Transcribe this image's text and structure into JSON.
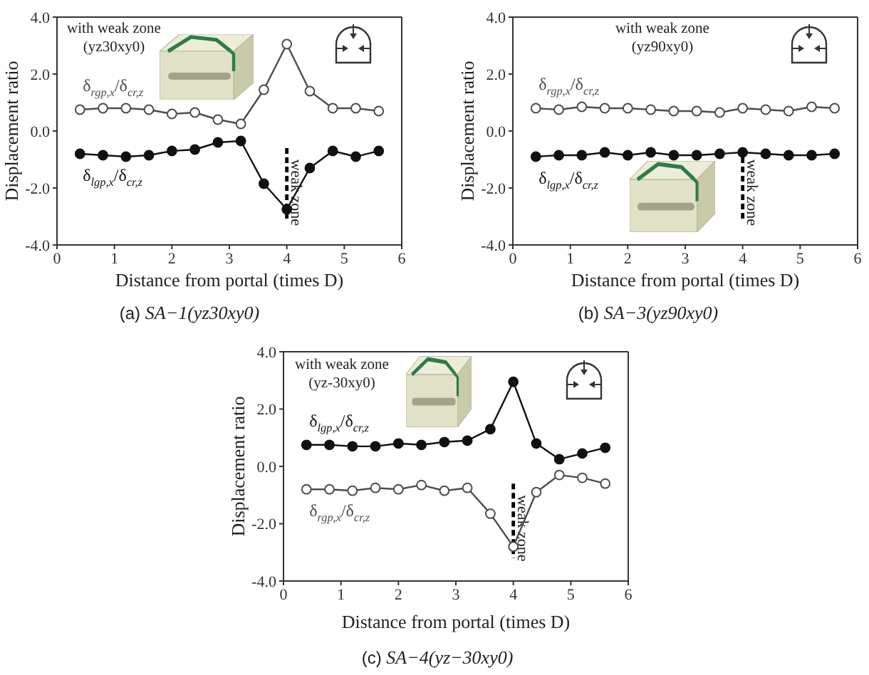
{
  "chart_data": [
    {
      "type": "line",
      "xlabel": "Distance from portal (times D)",
      "ylabel": "Displacement ratio",
      "x": [
        0.4,
        0.8,
        1.2,
        1.6,
        2.0,
        2.4,
        2.8,
        3.2,
        3.6,
        4.0,
        4.4,
        4.8,
        5.2,
        5.6
      ],
      "marker": "circle",
      "series": [
        {
          "name": "δ$_{rgp,x}$/δ$_{cr,z}$",
          "color": "#4d4d4d",
          "marker": "open circle",
          "values": [
            0.75,
            0.8,
            0.8,
            0.75,
            0.6,
            0.65,
            0.4,
            0.25,
            1.45,
            3.05,
            1.4,
            0.8,
            0.8,
            0.7
          ]
        },
        {
          "name": "δ$_{lgp,x}$/δ$_{cr,z}$",
          "color": "#111111",
          "values": [
            -0.8,
            -0.85,
            -0.9,
            -0.85,
            -0.7,
            -0.65,
            -0.4,
            -0.35,
            -1.85,
            -2.75,
            -1.3,
            -0.7,
            -0.9,
            -0.7
          ]
        }
      ],
      "xlim": [
        0,
        6
      ],
      "xticks": [
        0,
        1,
        2,
        3,
        4,
        5,
        6
      ],
      "ylim": [
        -4,
        4
      ],
      "yticks": [
        {
          "value": -4,
          "label": "-4.0"
        },
        {
          "value": -2,
          "label": "-2.0"
        },
        {
          "value": 0,
          "label": "0.0"
        },
        {
          "value": 2,
          "label": "2.0"
        },
        {
          "value": 4,
          "label": "4.0"
        }
      ],
      "ref_lines": [
        {
          "axis": "x",
          "value": 4,
          "label": "weak zone",
          "line_style": "dashed",
          "color": "#000000"
        }
      ],
      "annotations": [
        "with weak zone\n(yz30xy0)",
        "(a) SA−1(yz30xy0)"
      ]
    },
    {
      "type": "line",
      "xlabel": "Distance from portal (times D)",
      "ylabel": "Displacement ratio",
      "x": [
        0.4,
        0.8,
        1.2,
        1.6,
        2.0,
        2.4,
        2.8,
        3.2,
        3.6,
        4.0,
        4.4,
        4.8,
        5.2,
        5.6
      ],
      "marker": "circle",
      "series": [
        {
          "name": "δ$_{rgp,x}$/δ$_{cr,z}$",
          "color": "#4d4d4d",
          "marker": "open circle",
          "values": [
            0.8,
            0.75,
            0.85,
            0.8,
            0.8,
            0.75,
            0.7,
            0.7,
            0.65,
            0.8,
            0.75,
            0.7,
            0.85,
            0.8
          ]
        },
        {
          "name": "δ$_{lgp,x}$/δ$_{cr,z}$",
          "color": "#111111",
          "values": [
            -0.9,
            -0.85,
            -0.85,
            -0.75,
            -0.85,
            -0.75,
            -0.85,
            -0.85,
            -0.8,
            -0.75,
            -0.8,
            -0.85,
            -0.85,
            -0.8
          ]
        }
      ],
      "xlim": [
        0,
        6
      ],
      "xticks": [
        0,
        1,
        2,
        3,
        4,
        5,
        6
      ],
      "ylim": [
        -4,
        4
      ],
      "yticks": [
        {
          "value": -4,
          "label": "-4.0"
        },
        {
          "value": -2,
          "label": "-2.0"
        },
        {
          "value": 0,
          "label": "0.0"
        },
        {
          "value": 2,
          "label": "2.0"
        },
        {
          "value": 4,
          "label": "4.0"
        }
      ],
      "ref_lines": [
        {
          "axis": "x",
          "value": 4,
          "label": "weak zone",
          "line_style": "dashed",
          "color": "#000000"
        }
      ],
      "annotations": [
        "with weak zone\n(yz90xy0)",
        "(b) SA−3(yz90xy0)"
      ]
    },
    {
      "type": "line",
      "xlabel": "Distance from portal (times D)",
      "ylabel": "Displacement ratio",
      "x": [
        0.4,
        0.8,
        1.2,
        1.6,
        2.0,
        2.4,
        2.8,
        3.2,
        3.6,
        4.0,
        4.4,
        4.8,
        5.2,
        5.6
      ],
      "marker": "circle",
      "series": [
        {
          "name": "δ$_{lgp,x}$/δ$_{cr,z}$",
          "color": "#111111",
          "values": [
            0.75,
            0.75,
            0.7,
            0.7,
            0.8,
            0.75,
            0.85,
            0.9,
            1.3,
            2.95,
            0.8,
            0.25,
            0.45,
            0.65
          ]
        },
        {
          "name": "δ$_{rgp,x}$/δ$_{cr,z}$",
          "color": "#4d4d4d",
          "marker": "open circle",
          "values": [
            -0.8,
            -0.8,
            -0.85,
            -0.75,
            -0.8,
            -0.65,
            -0.85,
            -0.75,
            -1.65,
            -2.8,
            -0.9,
            -0.3,
            -0.4,
            -0.6
          ]
        }
      ],
      "xlim": [
        0,
        6
      ],
      "xticks": [
        0,
        1,
        2,
        3,
        4,
        5,
        6
      ],
      "ylim": [
        -4,
        4
      ],
      "yticks": [
        {
          "value": -4,
          "label": "-4.0"
        },
        {
          "value": -2,
          "label": "-2.0"
        },
        {
          "value": 0,
          "label": "0.0"
        },
        {
          "value": 2,
          "label": "2.0"
        },
        {
          "value": 4,
          "label": "4.0"
        }
      ],
      "ref_lines": [
        {
          "axis": "x",
          "value": 4,
          "label": "weak zone",
          "line_style": "dashed",
          "color": "#000000"
        }
      ],
      "annotations": [
        "with weak zone\n(yz-30xy0)",
        "(c) SA−4(yz−30xy0)"
      ]
    }
  ]
}
